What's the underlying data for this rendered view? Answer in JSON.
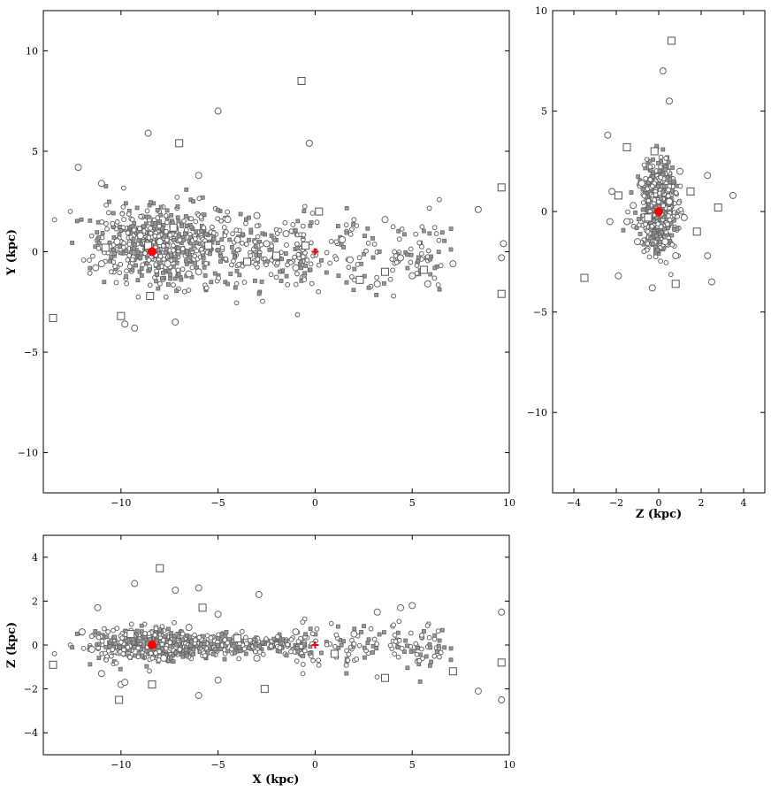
{
  "chart_data": [
    {
      "id": "xy",
      "type": "scatter",
      "xlabel": "",
      "ylabel": "Y (kpc)",
      "xlim": [
        -14,
        10
      ],
      "ylim": [
        -12,
        12
      ],
      "xticks": [
        -10,
        -5,
        0,
        5,
        10
      ],
      "yticks": [
        -10,
        -5,
        0,
        5,
        10
      ],
      "xtick_labels": [
        "−10",
        "−5",
        "0",
        "5",
        "10"
      ],
      "ytick_labels": [
        "−10",
        "−5",
        "0",
        "5",
        "10"
      ],
      "sun": [
        -8.4,
        0.0
      ],
      "galactic_center": [
        0.0,
        0.0
      ],
      "sample_points": [
        [
          -13.5,
          -3.3
        ],
        [
          -12.2,
          4.2
        ],
        [
          -11.0,
          3.4
        ],
        [
          -10.0,
          -3.2
        ],
        [
          -9.8,
          -3.6
        ],
        [
          -9.3,
          -3.8
        ],
        [
          -8.5,
          -2.2
        ],
        [
          -7.2,
          -3.5
        ],
        [
          -5.0,
          7.0
        ],
        [
          -0.7,
          8.5
        ],
        [
          -0.3,
          5.4
        ],
        [
          -8.6,
          5.9
        ],
        [
          -7.0,
          5.4
        ],
        [
          -6.0,
          3.8
        ],
        [
          8.4,
          2.1
        ],
        [
          9.6,
          3.2
        ],
        [
          9.7,
          0.4
        ],
        [
          9.6,
          -0.3
        ],
        [
          9.6,
          -2.1
        ],
        [
          7.1,
          -0.6
        ],
        [
          5.8,
          -1.6
        ],
        [
          5.6,
          -0.9
        ],
        [
          5.0,
          -1.2
        ],
        [
          4.4,
          -0.3
        ],
        [
          3.6,
          -1.0
        ],
        [
          3.6,
          1.6
        ],
        [
          3.2,
          -1.6
        ],
        [
          2.3,
          -1.4
        ],
        [
          1.8,
          -0.4
        ],
        [
          1.4,
          0.6
        ],
        [
          0.2,
          2.0
        ],
        [
          -11.0,
          -0.6
        ],
        [
          -11.3,
          -0.8
        ],
        [
          -10.8,
          0.2
        ],
        [
          -10.2,
          0.5
        ],
        [
          -9.0,
          0.8
        ],
        [
          -8.6,
          0.3
        ],
        [
          -8.0,
          0.5
        ],
        [
          -7.6,
          -0.6
        ],
        [
          -7.3,
          1.2
        ],
        [
          -6.5,
          -1.1
        ],
        [
          -6.0,
          -1.0
        ],
        [
          -5.5,
          0.3
        ],
        [
          -4.5,
          1.6
        ],
        [
          -4.0,
          0.6
        ],
        [
          -3.5,
          -0.5
        ],
        [
          -3.0,
          1.8
        ],
        [
          -2.5,
          0.4
        ],
        [
          -2.0,
          -0.2
        ],
        [
          -1.5,
          0.9
        ],
        [
          -1.0,
          -0.8
        ],
        [
          -0.5,
          0.3
        ]
      ],
      "markers": [
        "circle",
        "square"
      ],
      "point_color": "#666666",
      "highlight_color": "#ff0000"
    },
    {
      "id": "zy",
      "type": "scatter",
      "xlabel": "Z (kpc)",
      "ylabel": "",
      "xlim": [
        -5,
        5
      ],
      "ylim": [
        -14,
        10
      ],
      "xticks": [
        -4,
        -2,
        0,
        2,
        4
      ],
      "yticks": [
        -10,
        -5,
        0,
        5,
        10
      ],
      "xtick_labels": [
        "−4",
        "−2",
        "0",
        "2",
        "4"
      ],
      "ytick_labels": [
        "−10",
        "−5",
        "0",
        "5",
        "10"
      ],
      "sun": [
        0.0,
        0.0
      ],
      "sample_points": [
        [
          0.6,
          8.5
        ],
        [
          0.2,
          7.0
        ],
        [
          0.5,
          5.5
        ],
        [
          -1.5,
          3.2
        ],
        [
          -2.4,
          3.8
        ],
        [
          -2.2,
          1.0
        ],
        [
          -1.9,
          0.8
        ],
        [
          -1.5,
          -0.5
        ],
        [
          -2.3,
          -0.5
        ],
        [
          -3.5,
          -3.3
        ],
        [
          -1.9,
          -3.2
        ],
        [
          -0.3,
          -3.8
        ],
        [
          0.8,
          -3.6
        ],
        [
          2.5,
          -3.5
        ],
        [
          2.3,
          -2.2
        ],
        [
          2.8,
          0.2
        ],
        [
          3.5,
          0.8
        ],
        [
          2.3,
          1.8
        ],
        [
          1.8,
          -1.0
        ],
        [
          1.2,
          -0.3
        ],
        [
          0.5,
          0.5
        ],
        [
          -0.5,
          -0.3
        ],
        [
          -0.8,
          1.4
        ],
        [
          1.0,
          2.0
        ],
        [
          -0.2,
          3.0
        ],
        [
          0.3,
          -1.5
        ],
        [
          -1.0,
          -1.5
        ],
        [
          1.5,
          1.0
        ],
        [
          -1.2,
          0.3
        ],
        [
          0.8,
          -2.2
        ]
      ],
      "point_color": "#666666",
      "highlight_color": "#ff0000"
    },
    {
      "id": "xz",
      "type": "scatter",
      "xlabel": "X (kpc)",
      "ylabel": "Z (kpc)",
      "xlim": [
        -14,
        10
      ],
      "ylim": [
        -5,
        5
      ],
      "xticks": [
        -10,
        -5,
        0,
        5,
        10
      ],
      "yticks": [
        -4,
        -2,
        0,
        2,
        4
      ],
      "xtick_labels": [
        "−10",
        "−5",
        "0",
        "5",
        "10"
      ],
      "ytick_labels": [
        "−4",
        "−2",
        "0",
        "2",
        "4"
      ],
      "sun": [
        -8.4,
        0.0
      ],
      "galactic_center": [
        0.0,
        0.0
      ],
      "sample_points": [
        [
          -13.5,
          -0.9
        ],
        [
          -11.2,
          1.7
        ],
        [
          -11.0,
          -1.3
        ],
        [
          -10.1,
          -2.5
        ],
        [
          -10.0,
          -1.8
        ],
        [
          -9.3,
          2.8
        ],
        [
          -8.0,
          3.5
        ],
        [
          -7.2,
          2.5
        ],
        [
          -6.0,
          2.6
        ],
        [
          -5.8,
          1.7
        ],
        [
          -5.0,
          1.4
        ],
        [
          -2.9,
          2.3
        ],
        [
          -2.6,
          -2.0
        ],
        [
          -5.0,
          -1.6
        ],
        [
          -6.0,
          -2.3
        ],
        [
          -8.4,
          -1.8
        ],
        [
          -9.8,
          -1.7
        ],
        [
          9.6,
          1.5
        ],
        [
          9.6,
          -0.8
        ],
        [
          9.6,
          -2.5
        ],
        [
          8.4,
          -2.1
        ],
        [
          7.1,
          -1.2
        ],
        [
          5.0,
          1.8
        ],
        [
          4.4,
          1.7
        ],
        [
          3.6,
          -1.5
        ],
        [
          3.2,
          1.5
        ],
        [
          2.0,
          0.5
        ],
        [
          1.0,
          -0.4
        ],
        [
          -1.0,
          0.6
        ],
        [
          -3.0,
          -0.6
        ],
        [
          -4.0,
          0.3
        ],
        [
          -6.5,
          0.8
        ],
        [
          -7.8,
          -0.6
        ],
        [
          -9.5,
          0.5
        ],
        [
          -11.5,
          -0.2
        ],
        [
          -12.0,
          0.6
        ]
      ],
      "point_color": "#666666",
      "highlight_color": "#ff0000"
    }
  ]
}
